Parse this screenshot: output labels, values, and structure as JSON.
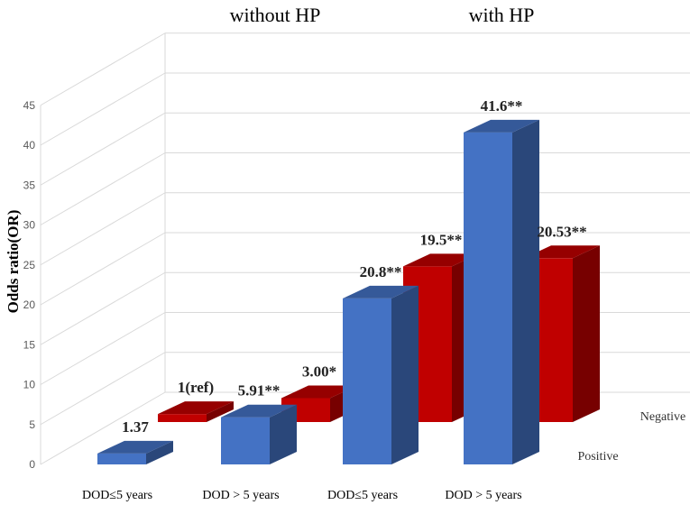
{
  "chart_data": {
    "type": "bar",
    "subtype": "3d-clustered",
    "ylabel": "Odds ratio(OR)",
    "ylim": [
      0,
      45
    ],
    "yticks": [
      0,
      5,
      10,
      15,
      20,
      25,
      30,
      35,
      40,
      45
    ],
    "grid": true,
    "groups": [
      "without HP",
      "with HP"
    ],
    "categories": [
      "DOD≤5 years",
      "DOD > 5 years",
      "DOD≤5 years",
      "DOD > 5 years"
    ],
    "series": [
      {
        "name": "Positive",
        "color": "#4472C4",
        "values": [
          1.37,
          5.91,
          20.8,
          41.6
        ],
        "labels": [
          "1.37",
          "5.91**",
          "20.8**",
          "41.6**"
        ]
      },
      {
        "name": "Negative",
        "color": "#C00000",
        "values": [
          1,
          3.0,
          19.5,
          20.53
        ],
        "labels": [
          "1(ref)",
          "3.00*",
          "19.5**",
          "20.53**"
        ]
      }
    ]
  }
}
